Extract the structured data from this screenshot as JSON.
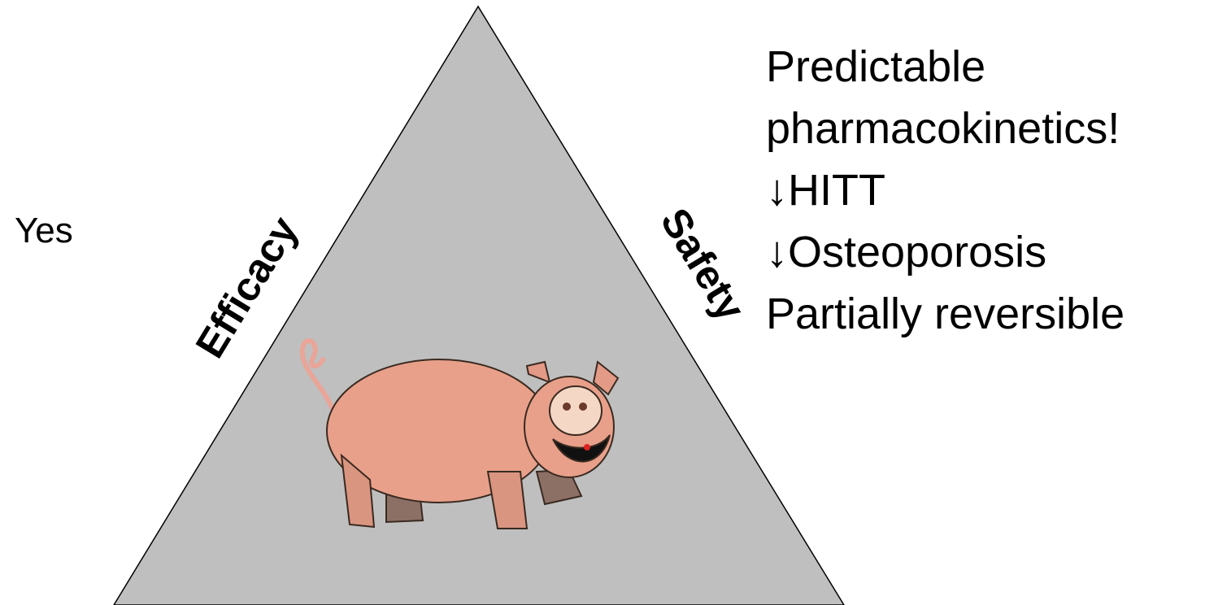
{
  "left_label": "Yes",
  "triangle": {
    "left_side": "Efficacy",
    "right_side": "Safety"
  },
  "safety_points": [
    "Predictable",
    "pharmacokinetics!",
    "↓HITT",
    "↓Osteoporosis",
    "Partially reversible"
  ]
}
